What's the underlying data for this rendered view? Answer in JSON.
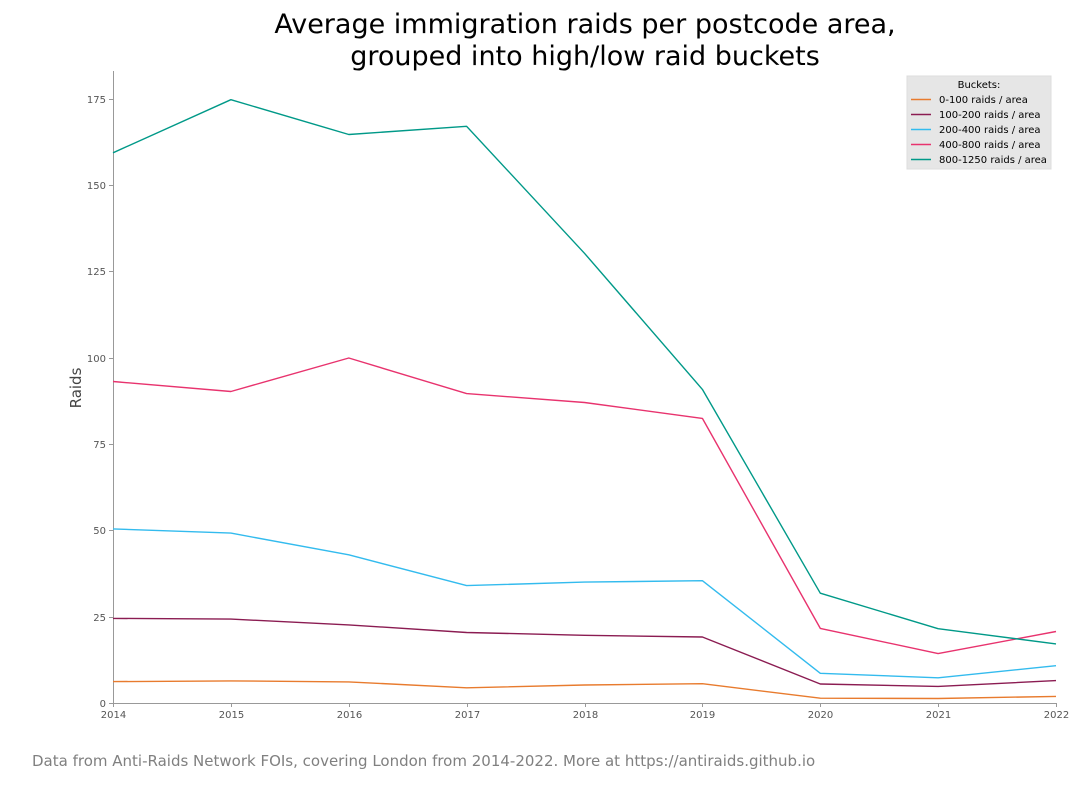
{
  "chart_data": {
    "type": "line",
    "title_lines": [
      "Average immigration raids per postcode area,",
      "grouped into high/low raid buckets"
    ],
    "xlabel": "",
    "ylabel": "Raids",
    "x": [
      2014,
      2015,
      2016,
      2017,
      2018,
      2019,
      2020,
      2021,
      2022
    ],
    "xlim": [
      2014,
      2022
    ],
    "ylim": [
      0,
      183
    ],
    "yticks": [
      0,
      25,
      50,
      75,
      100,
      125,
      150,
      175
    ],
    "grid": false,
    "legend": {
      "title": "Buckets:",
      "placement": "top-right"
    },
    "series": [
      {
        "name": "0-100 raids / area",
        "color": "#e87b2e",
        "values": [
          6.2,
          6.4,
          6.1,
          4.4,
          5.2,
          5.6,
          1.4,
          1.3,
          1.9
        ]
      },
      {
        "name": "100-200 raids / area",
        "color": "#8b1c52",
        "values": [
          24.5,
          24.3,
          22.6,
          20.4,
          19.6,
          19.1,
          5.5,
          4.8,
          6.5
        ]
      },
      {
        "name": "200-400 raids / area",
        "color": "#33bbee",
        "values": [
          50.4,
          49.2,
          42.9,
          34.0,
          35.0,
          35.4,
          8.6,
          7.3,
          10.8
        ]
      },
      {
        "name": "400-800 raids / area",
        "color": "#e8336e",
        "values": [
          93.1,
          90.2,
          99.9,
          89.6,
          87.0,
          82.4,
          21.6,
          14.3,
          20.7
        ]
      },
      {
        "name": "800-1250 raids / area",
        "color": "#009988",
        "values": [
          159.3,
          174.7,
          164.6,
          167.0,
          130.2,
          90.8,
          31.8,
          21.5,
          17.1
        ]
      }
    ]
  },
  "footer": {
    "source_note": "Data from Anti-Raids Network FOIs, covering London from 2014-2022. More at https://antiraids.github.io"
  }
}
